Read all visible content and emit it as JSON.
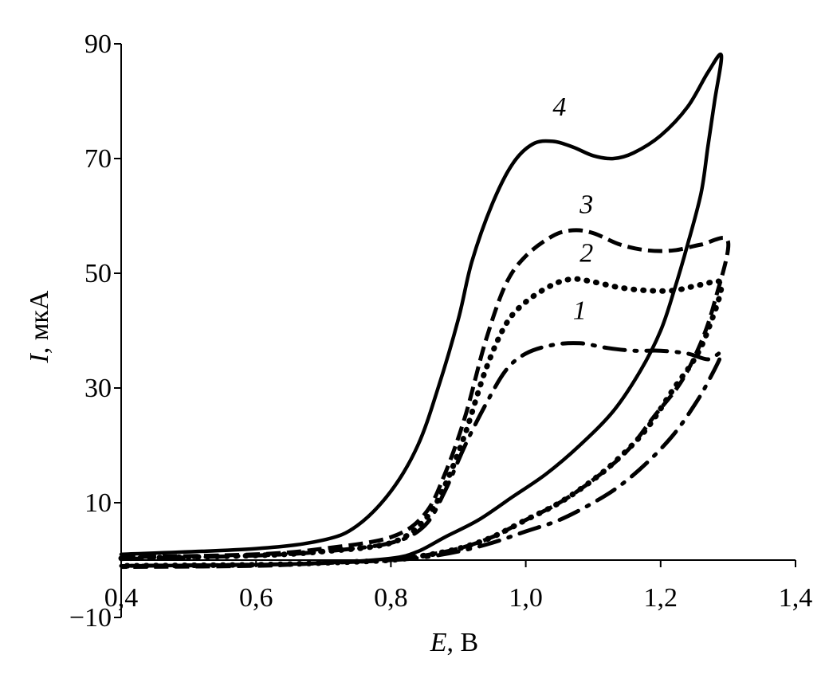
{
  "chart_data": {
    "type": "line",
    "title": "",
    "xlabel": {
      "var": "E",
      "unit": ", В"
    },
    "ylabel": {
      "var": "I",
      "unit": ", мкА"
    },
    "xlim": [
      0.4,
      1.4
    ],
    "ylim": [
      -10,
      90
    ],
    "xticks": [
      "0,4",
      "0,6",
      "0,8",
      "1,0",
      "1,2",
      "1,4"
    ],
    "yticks": [
      "90",
      "70",
      "50",
      "30",
      "10",
      "−10"
    ],
    "ytick_values": [
      90,
      70,
      50,
      30,
      10,
      -10
    ],
    "grid": false,
    "legend": "none",
    "series": [
      {
        "label": "1",
        "style": "dashdot",
        "label_pos": [
          1.08,
          42
        ],
        "forward": [
          [
            0.4,
            0.2
          ],
          [
            0.6,
            0.8
          ],
          [
            0.7,
            1.5
          ],
          [
            0.8,
            3
          ],
          [
            0.85,
            6
          ],
          [
            0.88,
            12
          ],
          [
            0.91,
            20
          ],
          [
            0.94,
            27
          ],
          [
            0.97,
            33
          ],
          [
            1.0,
            36
          ],
          [
            1.04,
            37.5
          ],
          [
            1.08,
            37.8
          ],
          [
            1.12,
            37
          ],
          [
            1.16,
            36.5
          ],
          [
            1.2,
            36.5
          ],
          [
            1.24,
            36
          ],
          [
            1.27,
            35
          ],
          [
            1.29,
            36
          ]
        ],
        "reverse": [
          [
            1.29,
            36
          ],
          [
            1.27,
            31
          ],
          [
            1.25,
            27
          ],
          [
            1.22,
            22
          ],
          [
            1.18,
            17
          ],
          [
            1.14,
            13
          ],
          [
            1.1,
            10
          ],
          [
            1.05,
            7
          ],
          [
            1.0,
            5
          ],
          [
            0.95,
            3
          ],
          [
            0.9,
            1.5
          ],
          [
            0.85,
            0.5
          ],
          [
            0.8,
            0
          ],
          [
            0.7,
            -0.5
          ],
          [
            0.6,
            -0.8
          ],
          [
            0.4,
            -1
          ]
        ]
      },
      {
        "label": "2",
        "style": "dotted",
        "label_pos": [
          1.09,
          52
        ],
        "forward": [
          [
            0.4,
            0.3
          ],
          [
            0.6,
            0.8
          ],
          [
            0.7,
            1.5
          ],
          [
            0.8,
            3
          ],
          [
            0.85,
            7
          ],
          [
            0.88,
            13
          ],
          [
            0.91,
            22
          ],
          [
            0.94,
            33
          ],
          [
            0.97,
            41
          ],
          [
            1.0,
            45
          ],
          [
            1.04,
            48
          ],
          [
            1.07,
            49
          ],
          [
            1.1,
            48.5
          ],
          [
            1.14,
            47.5
          ],
          [
            1.18,
            47
          ],
          [
            1.22,
            47
          ],
          [
            1.26,
            48
          ],
          [
            1.29,
            48
          ]
        ],
        "reverse": [
          [
            1.29,
            48
          ],
          [
            1.27,
            40
          ],
          [
            1.25,
            35
          ],
          [
            1.22,
            30
          ],
          [
            1.18,
            23
          ],
          [
            1.14,
            18
          ],
          [
            1.1,
            14
          ],
          [
            1.05,
            10
          ],
          [
            1.0,
            7
          ],
          [
            0.95,
            4
          ],
          [
            0.9,
            2
          ],
          [
            0.85,
            0.8
          ],
          [
            0.8,
            0
          ],
          [
            0.7,
            -0.5
          ],
          [
            0.6,
            -0.8
          ],
          [
            0.4,
            -1
          ]
        ]
      },
      {
        "label": "3",
        "style": "dashed",
        "label_pos": [
          1.09,
          60.5
        ],
        "forward": [
          [
            0.4,
            0.5
          ],
          [
            0.6,
            1
          ],
          [
            0.7,
            2
          ],
          [
            0.8,
            4
          ],
          [
            0.85,
            8
          ],
          [
            0.88,
            15
          ],
          [
            0.91,
            25
          ],
          [
            0.94,
            38
          ],
          [
            0.97,
            48
          ],
          [
            1.0,
            53
          ],
          [
            1.04,
            56.5
          ],
          [
            1.07,
            57.5
          ],
          [
            1.1,
            57
          ],
          [
            1.14,
            55
          ],
          [
            1.18,
            54
          ],
          [
            1.22,
            54
          ],
          [
            1.26,
            55
          ],
          [
            1.3,
            55.5
          ]
        ],
        "reverse": [
          [
            1.3,
            55.5
          ],
          [
            1.28,
            45
          ],
          [
            1.26,
            38
          ],
          [
            1.23,
            31
          ],
          [
            1.19,
            25
          ],
          [
            1.15,
            19
          ],
          [
            1.1,
            14
          ],
          [
            1.05,
            10
          ],
          [
            1.0,
            7
          ],
          [
            0.95,
            4
          ],
          [
            0.9,
            2
          ],
          [
            0.85,
            0.8
          ],
          [
            0.8,
            0
          ],
          [
            0.7,
            -0.5
          ],
          [
            0.6,
            -1
          ],
          [
            0.4,
            -1.2
          ]
        ]
      },
      {
        "label": "4",
        "style": "solid",
        "label_pos": [
          1.05,
          77.5
        ],
        "forward": [
          [
            0.4,
            1
          ],
          [
            0.6,
            2
          ],
          [
            0.7,
            3.5
          ],
          [
            0.75,
            6
          ],
          [
            0.8,
            12
          ],
          [
            0.84,
            20
          ],
          [
            0.87,
            30
          ],
          [
            0.9,
            42
          ],
          [
            0.92,
            52
          ],
          [
            0.95,
            62
          ],
          [
            0.98,
            69
          ],
          [
            1.01,
            72.5
          ],
          [
            1.04,
            73
          ],
          [
            1.07,
            72
          ],
          [
            1.1,
            70.5
          ],
          [
            1.13,
            70
          ],
          [
            1.16,
            71
          ],
          [
            1.2,
            74
          ],
          [
            1.24,
            79
          ],
          [
            1.27,
            85
          ],
          [
            1.29,
            88
          ]
        ],
        "reverse": [
          [
            1.29,
            88
          ],
          [
            1.28,
            80
          ],
          [
            1.27,
            72
          ],
          [
            1.26,
            64
          ],
          [
            1.24,
            55
          ],
          [
            1.22,
            47
          ],
          [
            1.2,
            40
          ],
          [
            1.17,
            33
          ],
          [
            1.13,
            26
          ],
          [
            1.08,
            20
          ],
          [
            1.03,
            15
          ],
          [
            0.98,
            11
          ],
          [
            0.93,
            7
          ],
          [
            0.88,
            4
          ],
          [
            0.84,
            1.5
          ],
          [
            0.8,
            0.3
          ],
          [
            0.7,
            -0.5
          ],
          [
            0.6,
            -0.8
          ],
          [
            0.4,
            -1
          ]
        ]
      }
    ]
  }
}
